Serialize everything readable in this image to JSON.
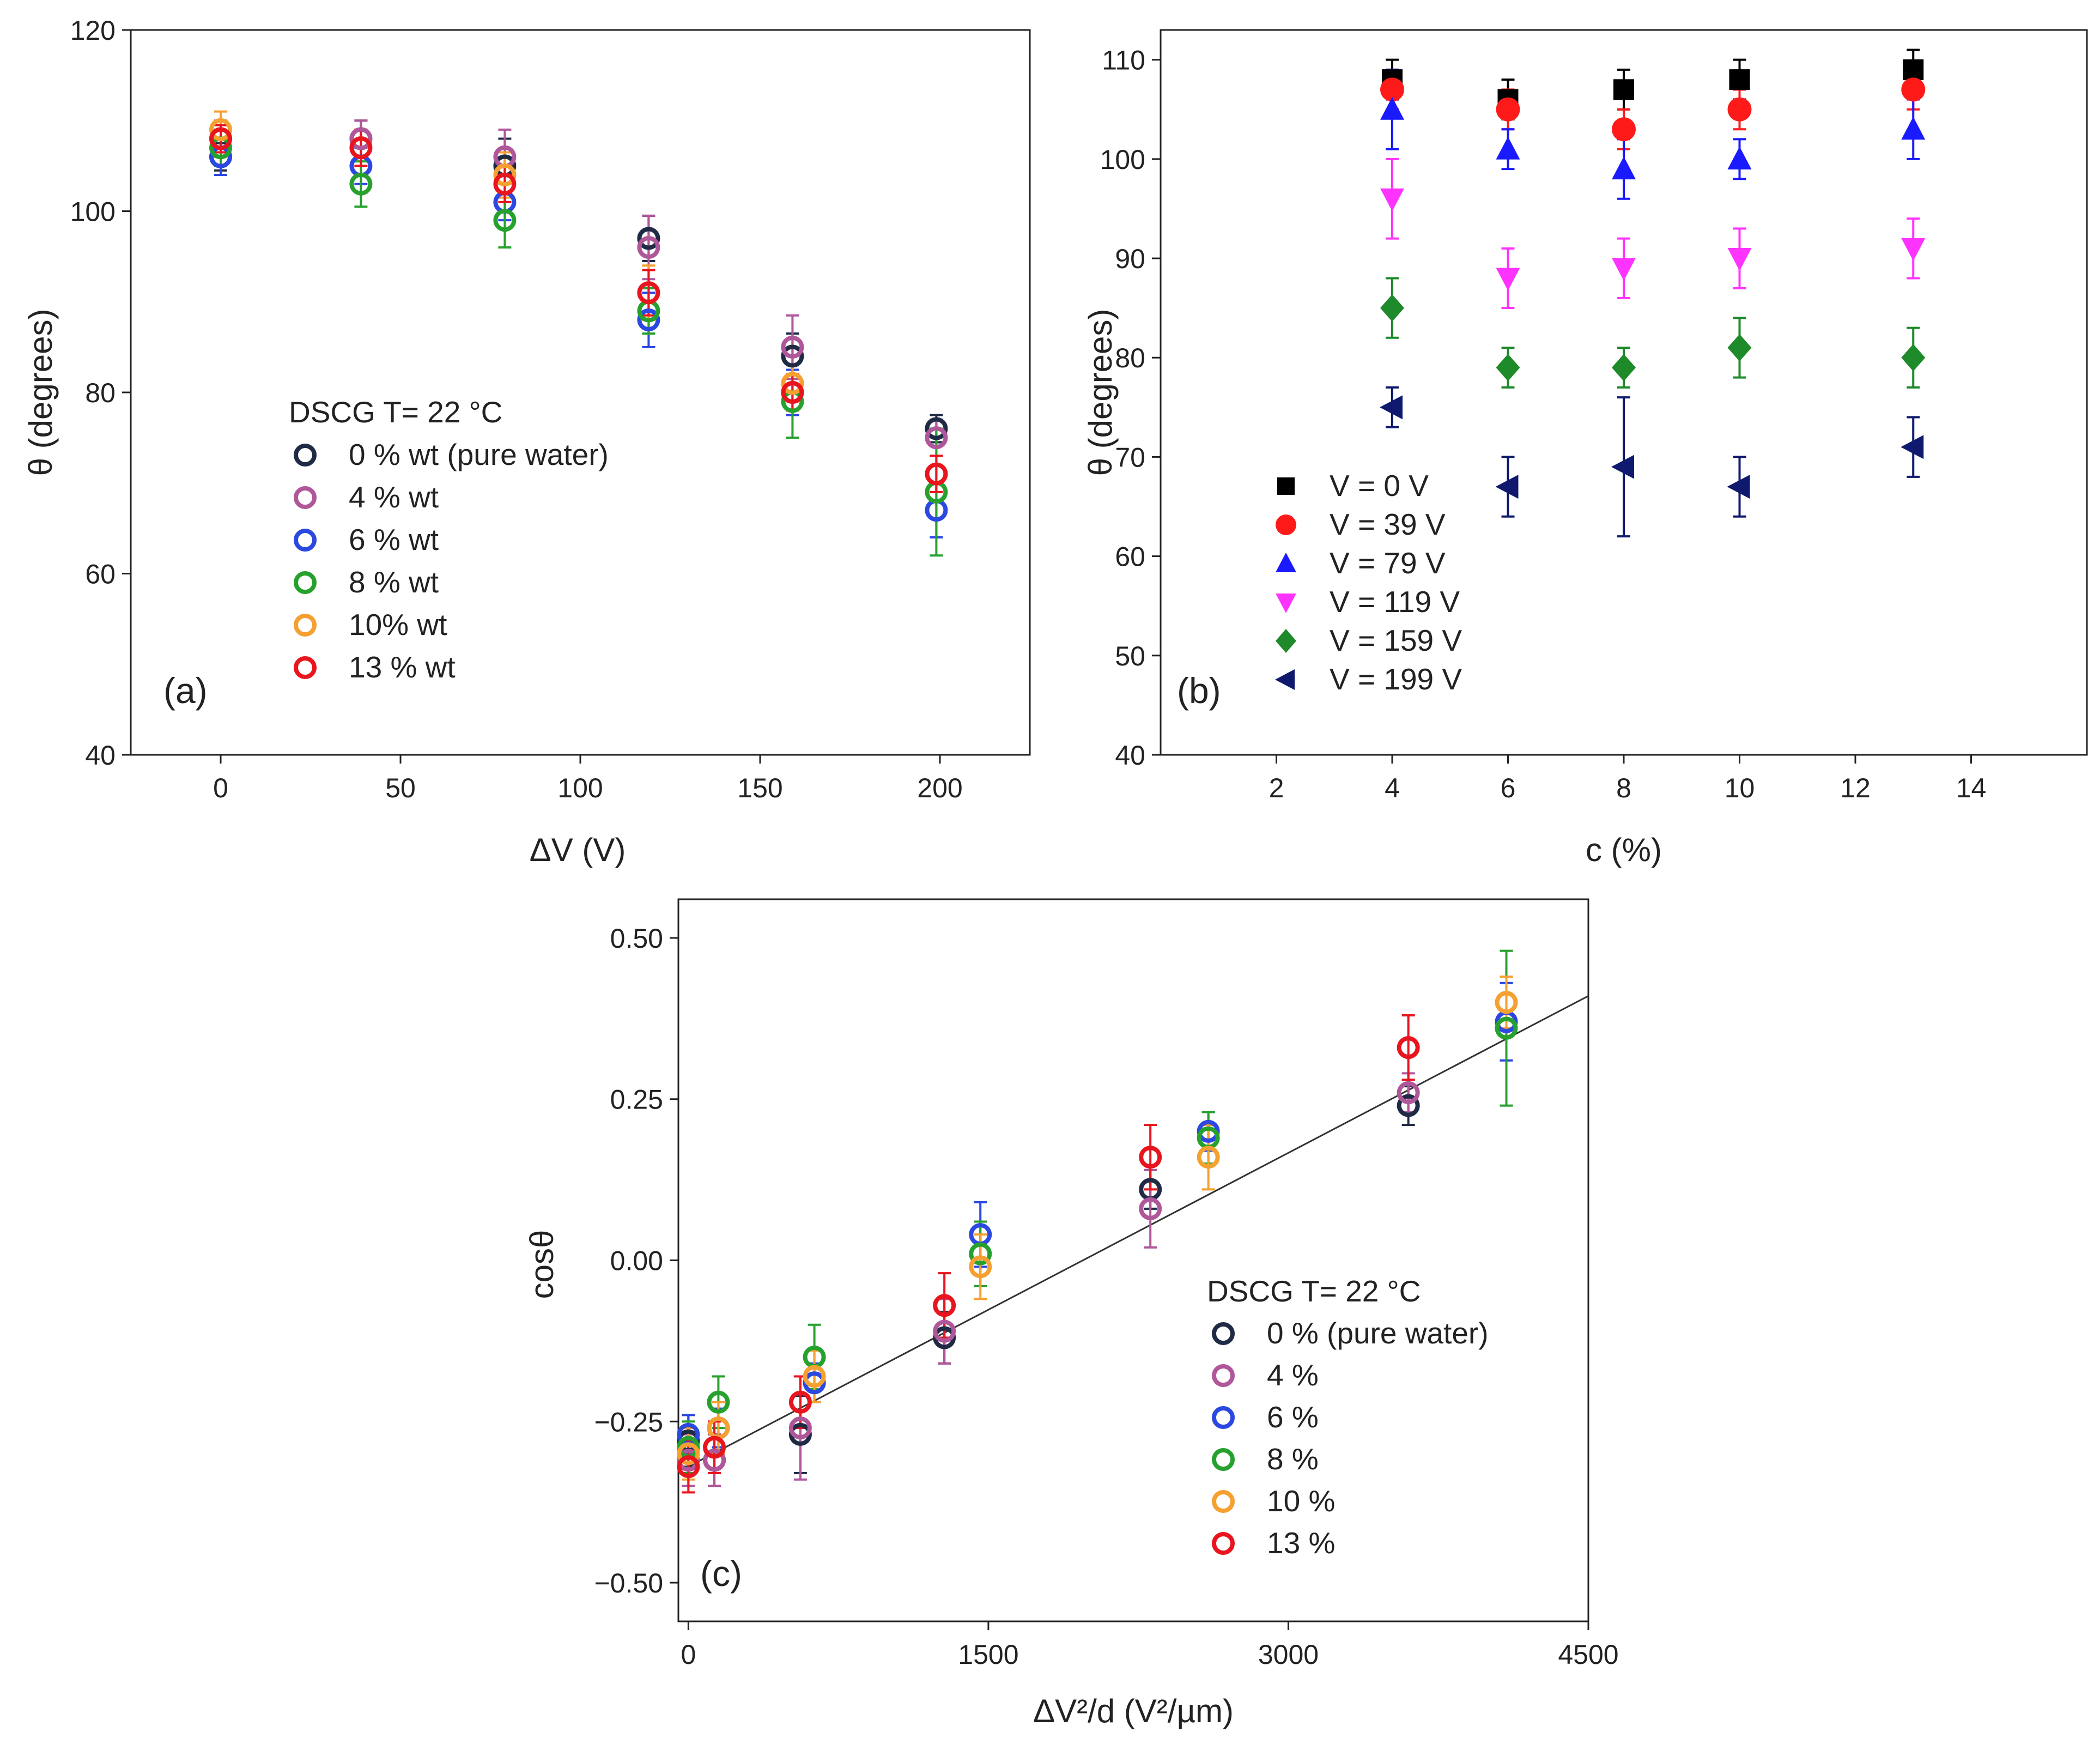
{
  "chart_data": [
    {
      "panel": "(a)",
      "type": "scatter",
      "xlabel": "ΔV (V)",
      "ylabel": "θ (degrees)",
      "xlim": [
        -25,
        225
      ],
      "ylim": [
        40,
        120
      ],
      "xticks": [
        0,
        50,
        100,
        150,
        200
      ],
      "yticks": [
        40,
        60,
        80,
        100,
        120
      ],
      "legend_title": "DSCG T= 22 °C",
      "legend_position": "lower-left",
      "x": [
        0,
        39,
        79,
        119,
        159,
        199
      ],
      "series": [
        {
          "name": "0 % wt (pure water)",
          "color": "#1f2a44",
          "values": [
            106,
            108,
            105,
            97,
            84,
            76
          ],
          "errors": [
            1.5,
            2,
            3,
            2.5,
            2.5,
            1.5
          ]
        },
        {
          "name": "4 % wt",
          "color": "#b0579a",
          "values": [
            108,
            108,
            106,
            96,
            85,
            75
          ],
          "errors": [
            2,
            2,
            3,
            3.5,
            3.5,
            2
          ]
        },
        {
          "name": "6 % wt",
          "color": "#2b48e0",
          "values": [
            106,
            105,
            101,
            88,
            80,
            67
          ],
          "errors": [
            2,
            2,
            2,
            3,
            2.5,
            3
          ]
        },
        {
          "name": "8 % wt",
          "color": "#27a12e",
          "values": [
            107,
            103,
            99,
            89,
            79,
            69
          ],
          "errors": [
            2,
            2.5,
            3,
            2.5,
            4,
            7
          ]
        },
        {
          "name": "10% wt",
          "color": "#f5a030",
          "values": [
            109,
            107,
            104,
            91,
            81,
            71
          ],
          "errors": [
            2,
            2,
            2.5,
            3,
            2,
            2
          ]
        },
        {
          "name": "13 % wt",
          "color": "#e8141e",
          "values": [
            108,
            107,
            103,
            91,
            80,
            71
          ],
          "errors": [
            1.5,
            2,
            2,
            2.5,
            2,
            2
          ]
        }
      ]
    },
    {
      "panel": "(b)",
      "type": "scatter",
      "xlabel": "c (%)",
      "ylabel": "θ (degrees)",
      "xlim": [
        0,
        16
      ],
      "ylim": [
        40,
        113
      ],
      "xticks": [
        2,
        4,
        6,
        8,
        10,
        12,
        14
      ],
      "yticks": [
        40,
        50,
        60,
        70,
        80,
        90,
        100,
        110
      ],
      "legend_position": "lower-left",
      "x": [
        4,
        6,
        8,
        10,
        13
      ],
      "series": [
        {
          "name": "V = 0 V",
          "marker": "square",
          "color": "#000000",
          "values": [
            108,
            106,
            107,
            108,
            109
          ],
          "errors": [
            2,
            2,
            2,
            2,
            2
          ]
        },
        {
          "name": "V = 39 V",
          "marker": "circle",
          "color": "#ff1a1a",
          "values": [
            107,
            105,
            103,
            105,
            107
          ],
          "errors": [
            2,
            2,
            2,
            2,
            2
          ]
        },
        {
          "name": "V = 79 V",
          "marker": "triangle-up",
          "color": "#1a1aff",
          "values": [
            105,
            101,
            99,
            100,
            103
          ],
          "errors": [
            4,
            2,
            3,
            2,
            3
          ]
        },
        {
          "name": "V = 119 V",
          "marker": "triangle-down",
          "color": "#ff33ff",
          "values": [
            96,
            88,
            89,
            90,
            91
          ],
          "errors": [
            4,
            3,
            3,
            3,
            3
          ]
        },
        {
          "name": "V = 159 V",
          "marker": "diamond",
          "color": "#1f8a2a",
          "values": [
            85,
            79,
            79,
            81,
            80
          ],
          "errors": [
            3,
            2,
            2,
            3,
            3
          ]
        },
        {
          "name": "V = 199 V",
          "marker": "triangle-left",
          "color": "#0f1a6e",
          "values": [
            75,
            67,
            69,
            67,
            71
          ],
          "errors": [
            2,
            3,
            7,
            3,
            3
          ]
        }
      ]
    },
    {
      "panel": "(c)",
      "type": "scatter",
      "xlabel": "ΔV²/d (V²/µm)",
      "ylabel": "cosθ",
      "xlim": [
        -50,
        4500
      ],
      "ylim": [
        -0.56,
        0.56
      ],
      "xticks": [
        0,
        1500,
        3000,
        4500
      ],
      "yticks": [
        -0.5,
        -0.25,
        0,
        0.25,
        0.5
      ],
      "ytick_labels": [
        "−0.50",
        "−0.25",
        "0.00",
        "0.25",
        "0.50"
      ],
      "legend_title": "DSCG T= 22 °C",
      "legend_position": "lower-right",
      "fit_line": {
        "x": [
          0,
          4500
        ],
        "y": [
          -0.32,
          0.41
        ]
      },
      "series": [
        {
          "name": "0 % (pure water)",
          "color": "#1f2a44",
          "x": [
            0,
            130,
            560,
            1280,
            2310,
            3600
          ],
          "values": [
            -0.28,
            -0.31,
            -0.27,
            -0.12,
            0.11,
            0.24
          ],
          "errors": [
            0.04,
            0.04,
            0.06,
            0.04,
            0.03,
            0.03
          ]
        },
        {
          "name": "4 %",
          "color": "#b0579a",
          "x": [
            0,
            130,
            560,
            1280,
            2310,
            3600
          ],
          "values": [
            -0.31,
            -0.31,
            -0.26,
            -0.11,
            0.08,
            0.26
          ],
          "errors": [
            0.04,
            0.04,
            0.08,
            0.05,
            0.06,
            0.03
          ]
        },
        {
          "name": "6 %",
          "color": "#2b48e0",
          "x": [
            0,
            150,
            630,
            1460,
            2600,
            4090
          ],
          "values": [
            -0.27,
            -0.26,
            -0.19,
            0.04,
            0.2,
            0.37
          ],
          "errors": [
            0.03,
            0.03,
            0.03,
            0.05,
            0.03,
            0.06
          ]
        },
        {
          "name": "8 %",
          "color": "#27a12e",
          "x": [
            0,
            150,
            630,
            1460,
            2600,
            4090
          ],
          "values": [
            -0.29,
            -0.22,
            -0.15,
            0.01,
            0.19,
            0.36
          ],
          "errors": [
            0.04,
            0.04,
            0.05,
            0.05,
            0.04,
            0.12
          ]
        },
        {
          "name": "10 %",
          "color": "#f5a030",
          "x": [
            0,
            150,
            630,
            1460,
            2600,
            4090
          ],
          "values": [
            -0.3,
            -0.26,
            -0.18,
            -0.01,
            0.16,
            0.4
          ],
          "errors": [
            0.04,
            0.04,
            0.04,
            0.05,
            0.05,
            0.04
          ]
        },
        {
          "name": "13 %",
          "color": "#e8141e",
          "x": [
            0,
            130,
            560,
            1280,
            2310,
            3600
          ],
          "values": [
            -0.32,
            -0.29,
            -0.22,
            -0.07,
            0.16,
            0.33
          ],
          "errors": [
            0.04,
            0.04,
            0.04,
            0.05,
            0.05,
            0.05
          ]
        }
      ]
    }
  ]
}
